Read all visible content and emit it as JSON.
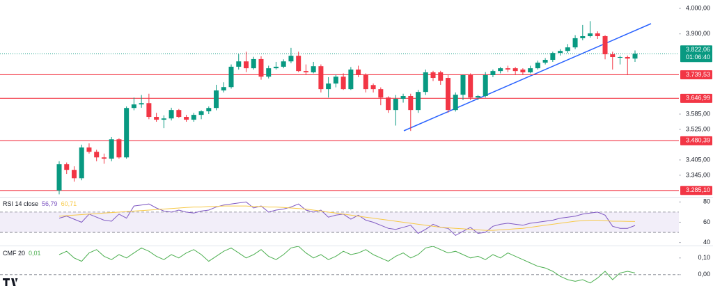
{
  "chart_data": [
    {
      "type": "candlestick",
      "ylim": [
        3260,
        4033
      ],
      "yticks": [
        {
          "value": 4000,
          "label": "4.000,00"
        },
        {
          "value": 3900,
          "label": "3.900,00"
        },
        {
          "value": 3585,
          "label": "3.585,00"
        },
        {
          "value": 3525,
          "label": "3.525,00"
        },
        {
          "value": 3405,
          "label": "3.405,00"
        },
        {
          "value": 3345,
          "label": "3.345,00"
        }
      ],
      "up_color": "#089981",
      "down_color": "#f23645",
      "levels": [
        {
          "value": 3739.53,
          "label": "3.739,53"
        },
        {
          "value": 3646.99,
          "label": "3.646,99"
        },
        {
          "value": 3480.39,
          "label": "3.480,39"
        },
        {
          "value": 3285.1,
          "label": "3.285,10"
        }
      ],
      "last_price": {
        "value": 3822.06,
        "label": "3.822,06"
      },
      "countdown": "01:06:40",
      "ohlc": [
        [
          3285,
          3400,
          3270,
          3388
        ],
        [
          3388,
          3395,
          3350,
          3366
        ],
        [
          3366,
          3380,
          3320,
          3333
        ],
        [
          3333,
          3465,
          3325,
          3454
        ],
        [
          3454,
          3470,
          3430,
          3437
        ],
        [
          3437,
          3445,
          3400,
          3415
        ],
        [
          3415,
          3430,
          3390,
          3410
        ],
        [
          3410,
          3495,
          3400,
          3486
        ],
        [
          3486,
          3490,
          3410,
          3415
        ],
        [
          3415,
          3615,
          3410,
          3609
        ],
        [
          3609,
          3650,
          3600,
          3623
        ],
        [
          3623,
          3660,
          3610,
          3628
        ],
        [
          3628,
          3665,
          3565,
          3574
        ],
        [
          3574,
          3590,
          3555,
          3563
        ],
        [
          3563,
          3580,
          3530,
          3568
        ],
        [
          3568,
          3610,
          3560,
          3601
        ],
        [
          3601,
          3605,
          3570,
          3574
        ],
        [
          3574,
          3582,
          3555,
          3563
        ],
        [
          3563,
          3590,
          3555,
          3582
        ],
        [
          3582,
          3600,
          3565,
          3596
        ],
        [
          3596,
          3615,
          3585,
          3609
        ],
        [
          3609,
          3700,
          3600,
          3678
        ],
        [
          3678,
          3710,
          3670,
          3691
        ],
        [
          3691,
          3780,
          3685,
          3771
        ],
        [
          3771,
          3820,
          3760,
          3792
        ],
        [
          3792,
          3830,
          3750,
          3765
        ],
        [
          3765,
          3810,
          3760,
          3801
        ],
        [
          3801,
          3812,
          3720,
          3732
        ],
        [
          3732,
          3775,
          3725,
          3765
        ],
        [
          3765,
          3790,
          3760,
          3771
        ],
        [
          3771,
          3800,
          3765,
          3792
        ],
        [
          3792,
          3845,
          3785,
          3814
        ],
        [
          3814,
          3830,
          3750,
          3754
        ],
        [
          3754,
          3780,
          3740,
          3749
        ],
        [
          3749,
          3790,
          3745,
          3773
        ],
        [
          3773,
          3780,
          3670,
          3683
        ],
        [
          3683,
          3730,
          3650,
          3705
        ],
        [
          3705,
          3740,
          3690,
          3732
        ],
        [
          3732,
          3745,
          3680,
          3683
        ],
        [
          3683,
          3770,
          3680,
          3760
        ],
        [
          3760,
          3775,
          3730,
          3738
        ],
        [
          3738,
          3745,
          3670,
          3683
        ],
        [
          3699,
          3705,
          3670,
          3683
        ],
        [
          3683,
          3690,
          3620,
          3650
        ],
        [
          3650,
          3655,
          3590,
          3601
        ],
        [
          3601,
          3660,
          3540,
          3645
        ],
        [
          3645,
          3665,
          3630,
          3656
        ],
        [
          3656,
          3665,
          3519,
          3601
        ],
        [
          3601,
          3680,
          3590,
          3672
        ],
        [
          3672,
          3760,
          3660,
          3749
        ],
        [
          3749,
          3755,
          3715,
          3727
        ],
        [
          3749,
          3755,
          3700,
          3716
        ],
        [
          3727,
          3740,
          3590,
          3601
        ],
        [
          3601,
          3670,
          3595,
          3661
        ],
        [
          3661,
          3740,
          3640,
          3738
        ],
        [
          3738,
          3745,
          3640,
          3650
        ],
        [
          3650,
          3660,
          3640,
          3656
        ],
        [
          3656,
          3750,
          3650,
          3738
        ],
        [
          3738,
          3760,
          3730,
          3754
        ],
        [
          3754,
          3770,
          3745,
          3765
        ],
        [
          3765,
          3775,
          3750,
          3760
        ],
        [
          3765,
          3770,
          3740,
          3754
        ],
        [
          3760,
          3765,
          3740,
          3749
        ],
        [
          3749,
          3775,
          3745,
          3765
        ],
        [
          3765,
          3795,
          3760,
          3787
        ],
        [
          3787,
          3805,
          3780,
          3798
        ],
        [
          3798,
          3830,
          3790,
          3825
        ],
        [
          3825,
          3840,
          3815,
          3833
        ],
        [
          3833,
          3860,
          3825,
          3847
        ],
        [
          3847,
          3895,
          3840,
          3883
        ],
        [
          3883,
          3935,
          3875,
          3891
        ],
        [
          3891,
          3950,
          3885,
          3902
        ],
        [
          3902,
          3910,
          3880,
          3891
        ],
        [
          3891,
          3895,
          3800,
          3820
        ],
        [
          3820,
          3830,
          3760,
          3809
        ],
        [
          3809,
          3815,
          3780,
          3809
        ],
        [
          3809,
          3815,
          3740,
          3803
        ],
        [
          3803,
          3835,
          3790,
          3822.06
        ]
      ]
    },
    {
      "type": "line",
      "title": "RSI 14 close",
      "ylim": [
        37,
        85
      ],
      "yticks": [
        80,
        60,
        40
      ],
      "bands": [
        70,
        50
      ],
      "series": [
        {
          "color": "#7e57c2",
          "last_label": "56,79",
          "values": [
            64,
            66,
            63,
            60,
            68,
            65,
            62,
            61,
            68,
            64,
            76,
            77,
            78,
            74,
            71,
            70,
            72,
            70,
            69,
            71,
            72,
            75,
            77,
            78,
            79,
            80,
            74,
            76,
            70,
            72,
            73,
            75,
            78,
            72,
            70,
            72,
            65,
            67,
            68,
            63,
            67,
            62,
            60,
            57,
            54,
            53,
            55,
            57,
            49,
            53,
            58,
            55,
            54,
            47,
            51,
            55,
            49,
            50,
            56,
            58,
            59,
            58,
            57,
            59,
            60,
            61,
            62,
            64,
            65,
            66,
            68,
            69,
            70,
            67,
            56,
            54,
            54,
            56.79
          ]
        },
        {
          "color": "#f7c948",
          "last_label": "60,71",
          "values": [
            66,
            66.5,
            67,
            67.5,
            68,
            68.5,
            69,
            69.5,
            70,
            70.5,
            71,
            71.5,
            72,
            72.5,
            73,
            73.5,
            74,
            74.5,
            75,
            75,
            75.5,
            75.5,
            76,
            76,
            76,
            76,
            75.5,
            75.5,
            75,
            75,
            74.5,
            74,
            73.5,
            73,
            72,
            71,
            70,
            69,
            68,
            67,
            66,
            65,
            64,
            63,
            62,
            61,
            60,
            59,
            58,
            57,
            56,
            55,
            54.5,
            54,
            53.5,
            53,
            52.5,
            52,
            52,
            52.5,
            53,
            53.5,
            54,
            55,
            56,
            57,
            58,
            59,
            60,
            61,
            61.5,
            62,
            62,
            61.5,
            61,
            61,
            60.8,
            60.71
          ]
        }
      ]
    },
    {
      "type": "line",
      "title": "CMF 20",
      "ylim": [
        -0.08,
        0.17
      ],
      "yticks": [
        {
          "value": 0.1,
          "label": "0,10"
        },
        {
          "value": 0,
          "label": "0,00"
        }
      ],
      "zero_line": 0,
      "series": [
        {
          "color": "#4caf50",
          "last_label": "0,01",
          "values": [
            0.12,
            0.14,
            0.1,
            0.08,
            0.13,
            0.15,
            0.11,
            0.09,
            0.12,
            0.1,
            0.13,
            0.16,
            0.14,
            0.11,
            0.09,
            0.12,
            0.1,
            0.13,
            0.15,
            0.12,
            0.08,
            0.11,
            0.14,
            0.16,
            0.13,
            0.1,
            0.12,
            0.15,
            0.11,
            0.09,
            0.12,
            0.16,
            0.17,
            0.13,
            0.1,
            0.12,
            0.09,
            0.11,
            0.14,
            0.12,
            0.13,
            0.15,
            0.12,
            0.1,
            0.08,
            0.11,
            0.13,
            0.1,
            0.12,
            0.16,
            0.17,
            0.15,
            0.13,
            0.14,
            0.12,
            0.1,
            0.11,
            0.09,
            0.12,
            0.1,
            0.13,
            0.11,
            0.09,
            0.07,
            0.05,
            0.04,
            0.02,
            -0.01,
            -0.03,
            -0.04,
            -0.03,
            -0.05,
            -0.02,
            0.02,
            -0.03,
            0.01,
            0.02,
            0.01
          ]
        }
      ]
    }
  ]
}
